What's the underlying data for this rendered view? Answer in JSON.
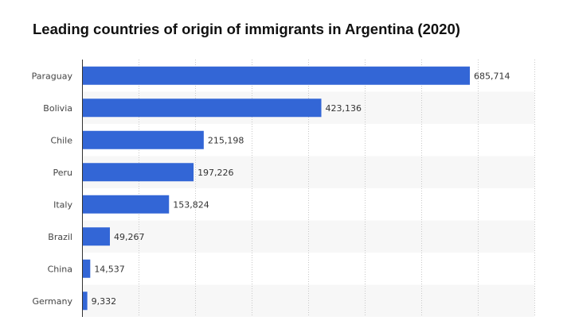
{
  "chart_data": {
    "type": "bar",
    "orientation": "horizontal",
    "title": "Leading countries of origin of immigrants in Argentina (2020)",
    "xlabel": "",
    "ylabel": "",
    "categories": [
      "Paraguay",
      "Bolivia",
      "Chile",
      "Peru",
      "Italy",
      "Brazil",
      "China",
      "Germany"
    ],
    "values": [
      685714,
      423136,
      215198,
      197226,
      153824,
      49267,
      14537,
      9332
    ],
    "value_labels": [
      "685,714",
      "423,136",
      "215,198",
      "197,226",
      "153,824",
      "49,267",
      "14,537",
      "9,332"
    ],
    "xlim": [
      0,
      800000
    ],
    "grid": "vertical-dotted",
    "legend": "none",
    "bar_color": "#3366d6",
    "band_color": "#f7f7f7"
  }
}
